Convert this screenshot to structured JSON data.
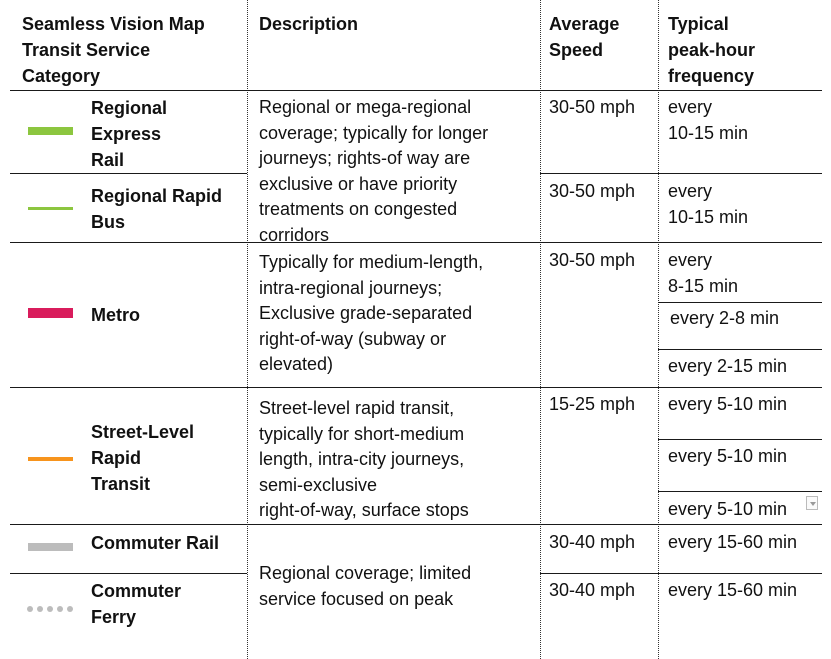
{
  "header": {
    "category": "Seamless Vision Map\nTransit Service\nCategory",
    "description": "Description",
    "speed": "Average\nSpeed",
    "frequency": "Typical\npeak-hour\nfrequency"
  },
  "colors": {
    "regional_express_rail": "#8cc63f",
    "regional_rapid_bus": "#8cc63f",
    "metro": "#d91c5c",
    "street_level": "#f7941d",
    "commuter_rail": "#bcbcbc",
    "commuter_ferry": "#bcbcbc"
  },
  "rows": {
    "regional_express_rail": {
      "name": "Regional\nExpress\nRail",
      "speed": "30-50 mph",
      "frequency": "every\n10-15 min"
    },
    "regional_rapid_bus": {
      "name": "Regional Rapid\nBus",
      "speed": "30-50 mph",
      "frequency": "every\n10-15 min"
    },
    "regional_description": "Regional or mega-regional\ncoverage; typically for longer\njourneys; rights-of way are\nexclusive or have priority\ntreatments on congested\ncorridors",
    "metro": {
      "name": "Metro",
      "description": "Typically for medium-length,\nintra-regional journeys;\nExclusive grade-separated\nright-of-way (subway or\nelevated)",
      "speed": "30-50 mph",
      "frequency_1": "every\n8-15 min",
      "frequency_2": "every 2-8 min",
      "frequency_3": "every 2-15 min"
    },
    "street_level": {
      "name": "Street-Level\nRapid\nTransit",
      "description": "Street-level rapid transit,\ntypically for short-medium\nlength, intra-city journeys,\nsemi-exclusive\nright-of-way, surface stops",
      "speed": "15-25 mph",
      "frequency_1": "every 5-10 min",
      "frequency_2": "every 5-10 min",
      "frequency_3": "every 5-10 min"
    },
    "commuter_rail": {
      "name": "Commuter Rail",
      "speed": "30-40 mph",
      "frequency": "every 15-60 min"
    },
    "commuter_ferry": {
      "name": "Commuter\nFerry",
      "speed": "30-40 mph",
      "frequency": "every 15-60 min"
    },
    "commuter_description": "Regional coverage; limited\nservice focused on peak"
  }
}
